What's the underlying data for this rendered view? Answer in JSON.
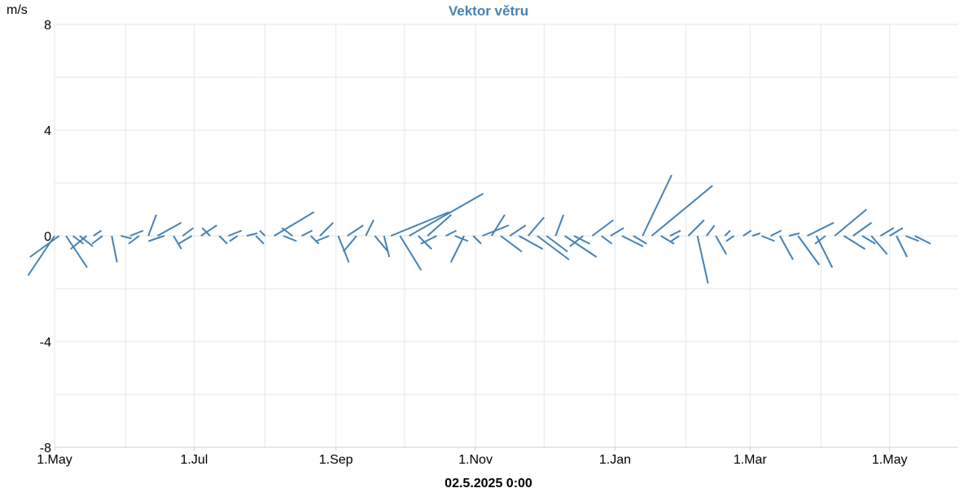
{
  "chart_data": {
    "type": "vector",
    "title": "Vektor větru",
    "ylabel": "m/s",
    "ylim": [
      -8,
      8
    ],
    "yticks": [
      8,
      4,
      0,
      -4,
      -8
    ],
    "xlim": [
      "2024-05-01",
      "2025-05-31"
    ],
    "xticks": [
      {
        "label": "1.May",
        "date": "2024-05-01"
      },
      {
        "label": "1.Jul",
        "date": "2024-07-01"
      },
      {
        "label": "1.Sep",
        "date": "2024-09-01"
      },
      {
        "label": "1.Nov",
        "date": "2024-11-01"
      },
      {
        "label": "1.Jan",
        "date": "2025-01-01"
      },
      {
        "label": "1.Mar",
        "date": "2025-03-01"
      },
      {
        "label": "1.May",
        "date": "2025-05-01"
      }
    ],
    "grid": true,
    "timestamp": "02.5.2025 0:00",
    "color": "#4682b4",
    "vectors": [
      {
        "date": "2024-05-01",
        "u": -1.0,
        "v": -1.5
      },
      {
        "date": "2024-05-03",
        "u": -1.1,
        "v": -0.8
      },
      {
        "date": "2024-05-06",
        "u": 0.8,
        "v": -1.2
      },
      {
        "date": "2024-05-09",
        "u": 0.4,
        "v": -0.3
      },
      {
        "date": "2024-05-12",
        "u": 0.5,
        "v": -0.4
      },
      {
        "date": "2024-05-15",
        "u": -0.6,
        "v": -0.5
      },
      {
        "date": "2024-05-18",
        "u": 0.3,
        "v": 0.2
      },
      {
        "date": "2024-05-22",
        "u": -0.4,
        "v": -0.3
      },
      {
        "date": "2024-05-26",
        "u": 0.2,
        "v": -1.0
      },
      {
        "date": "2024-05-30",
        "u": 0.4,
        "v": -0.1
      },
      {
        "date": "2024-06-03",
        "u": 0.5,
        "v": 0.2
      },
      {
        "date": "2024-06-07",
        "u": -0.4,
        "v": -0.3
      },
      {
        "date": "2024-06-11",
        "u": 0.3,
        "v": 0.8
      },
      {
        "date": "2024-06-15",
        "u": 0.9,
        "v": 0.5
      },
      {
        "date": "2024-06-18",
        "u": -0.6,
        "v": -0.2
      },
      {
        "date": "2024-06-22",
        "u": 0.3,
        "v": -0.5
      },
      {
        "date": "2024-06-26",
        "u": 0.4,
        "v": 0.3
      },
      {
        "date": "2024-06-30",
        "u": -0.5,
        "v": -0.3
      },
      {
        "date": "2024-07-04",
        "u": 0.6,
        "v": 0.4
      },
      {
        "date": "2024-07-08",
        "u": -0.3,
        "v": 0.3
      },
      {
        "date": "2024-07-12",
        "u": 0.3,
        "v": -0.3
      },
      {
        "date": "2024-07-16",
        "u": 0.5,
        "v": 0.2
      },
      {
        "date": "2024-07-20",
        "u": -0.3,
        "v": -0.2
      },
      {
        "date": "2024-07-24",
        "u": 0.4,
        "v": 0.1
      },
      {
        "date": "2024-07-28",
        "u": 0.3,
        "v": -0.3
      },
      {
        "date": "2024-08-01",
        "u": -0.2,
        "v": 0.2
      },
      {
        "date": "2024-08-05",
        "u": 1.5,
        "v": 0.9
      },
      {
        "date": "2024-08-09",
        "u": 0.5,
        "v": -0.2
      },
      {
        "date": "2024-08-13",
        "u": -0.4,
        "v": 0.3
      },
      {
        "date": "2024-08-17",
        "u": 0.4,
        "v": 0.2
      },
      {
        "date": "2024-08-21",
        "u": 0.3,
        "v": -0.3
      },
      {
        "date": "2024-08-25",
        "u": 0.5,
        "v": 0.5
      },
      {
        "date": "2024-08-29",
        "u": -0.5,
        "v": -0.2
      },
      {
        "date": "2024-09-02",
        "u": 0.4,
        "v": -1.0
      },
      {
        "date": "2024-09-06",
        "u": 0.6,
        "v": 0.4
      },
      {
        "date": "2024-09-10",
        "u": -0.5,
        "v": -0.6
      },
      {
        "date": "2024-09-14",
        "u": 0.3,
        "v": 0.6
      },
      {
        "date": "2024-09-18",
        "u": 0.5,
        "v": -0.6
      },
      {
        "date": "2024-09-22",
        "u": 0.2,
        "v": -0.8
      },
      {
        "date": "2024-09-25",
        "u": 2.2,
        "v": 0.9
      },
      {
        "date": "2024-09-29",
        "u": 0.8,
        "v": -1.3
      },
      {
        "date": "2024-10-03",
        "u": 2.8,
        "v": 1.6
      },
      {
        "date": "2024-10-07",
        "u": 0.5,
        "v": -0.5
      },
      {
        "date": "2024-10-11",
        "u": 0.9,
        "v": 0.8
      },
      {
        "date": "2024-10-15",
        "u": -0.6,
        "v": -0.3
      },
      {
        "date": "2024-10-19",
        "u": 0.4,
        "v": 0.2
      },
      {
        "date": "2024-10-23",
        "u": 0.5,
        "v": -0.2
      },
      {
        "date": "2024-10-27",
        "u": -0.5,
        "v": -1.0
      },
      {
        "date": "2024-10-31",
        "u": 0.3,
        "v": -0.3
      },
      {
        "date": "2024-11-04",
        "u": 1.0,
        "v": 0.4
      },
      {
        "date": "2024-11-08",
        "u": 0.5,
        "v": 0.8
      },
      {
        "date": "2024-11-12",
        "u": 0.8,
        "v": -0.6
      },
      {
        "date": "2024-11-16",
        "u": 0.6,
        "v": 0.4
      },
      {
        "date": "2024-11-20",
        "u": 0.9,
        "v": -0.5
      },
      {
        "date": "2024-11-24",
        "u": 0.6,
        "v": 0.7
      },
      {
        "date": "2024-11-28",
        "u": 1.2,
        "v": -0.9
      },
      {
        "date": "2024-12-02",
        "u": 0.8,
        "v": -0.6
      },
      {
        "date": "2024-12-06",
        "u": 0.3,
        "v": 0.8
      },
      {
        "date": "2024-12-10",
        "u": 1.2,
        "v": -0.8
      },
      {
        "date": "2024-12-14",
        "u": 0.6,
        "v": -0.3
      },
      {
        "date": "2024-12-18",
        "u": -0.5,
        "v": -0.4
      },
      {
        "date": "2024-12-22",
        "u": 0.8,
        "v": 0.6
      },
      {
        "date": "2024-12-26",
        "u": 0.4,
        "v": -0.3
      },
      {
        "date": "2024-12-30",
        "u": 0.5,
        "v": 0.3
      },
      {
        "date": "2025-01-04",
        "u": 0.8,
        "v": -0.4
      },
      {
        "date": "2025-01-09",
        "u": 0.5,
        "v": -0.3
      },
      {
        "date": "2025-01-13",
        "u": 1.1,
        "v": 2.3
      },
      {
        "date": "2025-01-17",
        "u": 2.3,
        "v": 1.9
      },
      {
        "date": "2025-01-21",
        "u": 0.5,
        "v": -0.3
      },
      {
        "date": "2025-01-25",
        "u": 0.4,
        "v": 0.2
      },
      {
        "date": "2025-01-29",
        "u": -0.3,
        "v": -0.2
      },
      {
        "date": "2025-02-02",
        "u": 0.6,
        "v": 0.6
      },
      {
        "date": "2025-02-06",
        "u": 0.4,
        "v": -1.8
      },
      {
        "date": "2025-02-10",
        "u": 0.3,
        "v": 0.4
      },
      {
        "date": "2025-02-14",
        "u": 0.4,
        "v": -0.7
      },
      {
        "date": "2025-02-18",
        "u": 0.2,
        "v": 0.2
      },
      {
        "date": "2025-02-22",
        "u": -0.3,
        "v": -0.2
      },
      {
        "date": "2025-02-26",
        "u": 0.3,
        "v": 0.2
      },
      {
        "date": "2025-03-02",
        "u": 0.3,
        "v": 0.1
      },
      {
        "date": "2025-03-06",
        "u": 0.5,
        "v": -0.2
      },
      {
        "date": "2025-03-10",
        "u": 0.4,
        "v": 0.2
      },
      {
        "date": "2025-03-14",
        "u": 0.5,
        "v": -0.9
      },
      {
        "date": "2025-03-18",
        "u": 0.4,
        "v": 0.1
      },
      {
        "date": "2025-03-22",
        "u": 0.8,
        "v": -1.1
      },
      {
        "date": "2025-03-26",
        "u": 1.0,
        "v": 0.5
      },
      {
        "date": "2025-03-30",
        "u": 0.6,
        "v": -1.2
      },
      {
        "date": "2025-04-03",
        "u": -0.4,
        "v": -0.3
      },
      {
        "date": "2025-04-07",
        "u": 1.2,
        "v": 1.0
      },
      {
        "date": "2025-04-11",
        "u": 0.8,
        "v": -0.5
      },
      {
        "date": "2025-04-15",
        "u": 0.7,
        "v": 0.5
      },
      {
        "date": "2025-04-19",
        "u": 0.5,
        "v": -0.3
      },
      {
        "date": "2025-04-23",
        "u": 0.6,
        "v": -0.7
      },
      {
        "date": "2025-04-27",
        "u": 0.5,
        "v": 0.3
      },
      {
        "date": "2025-05-01",
        "u": 0.5,
        "v": 0.3
      },
      {
        "date": "2025-05-04",
        "u": 0.4,
        "v": -0.8
      },
      {
        "date": "2025-05-08",
        "u": 0.5,
        "v": -0.2
      },
      {
        "date": "2025-05-12",
        "u": 0.6,
        "v": -0.3
      }
    ]
  }
}
